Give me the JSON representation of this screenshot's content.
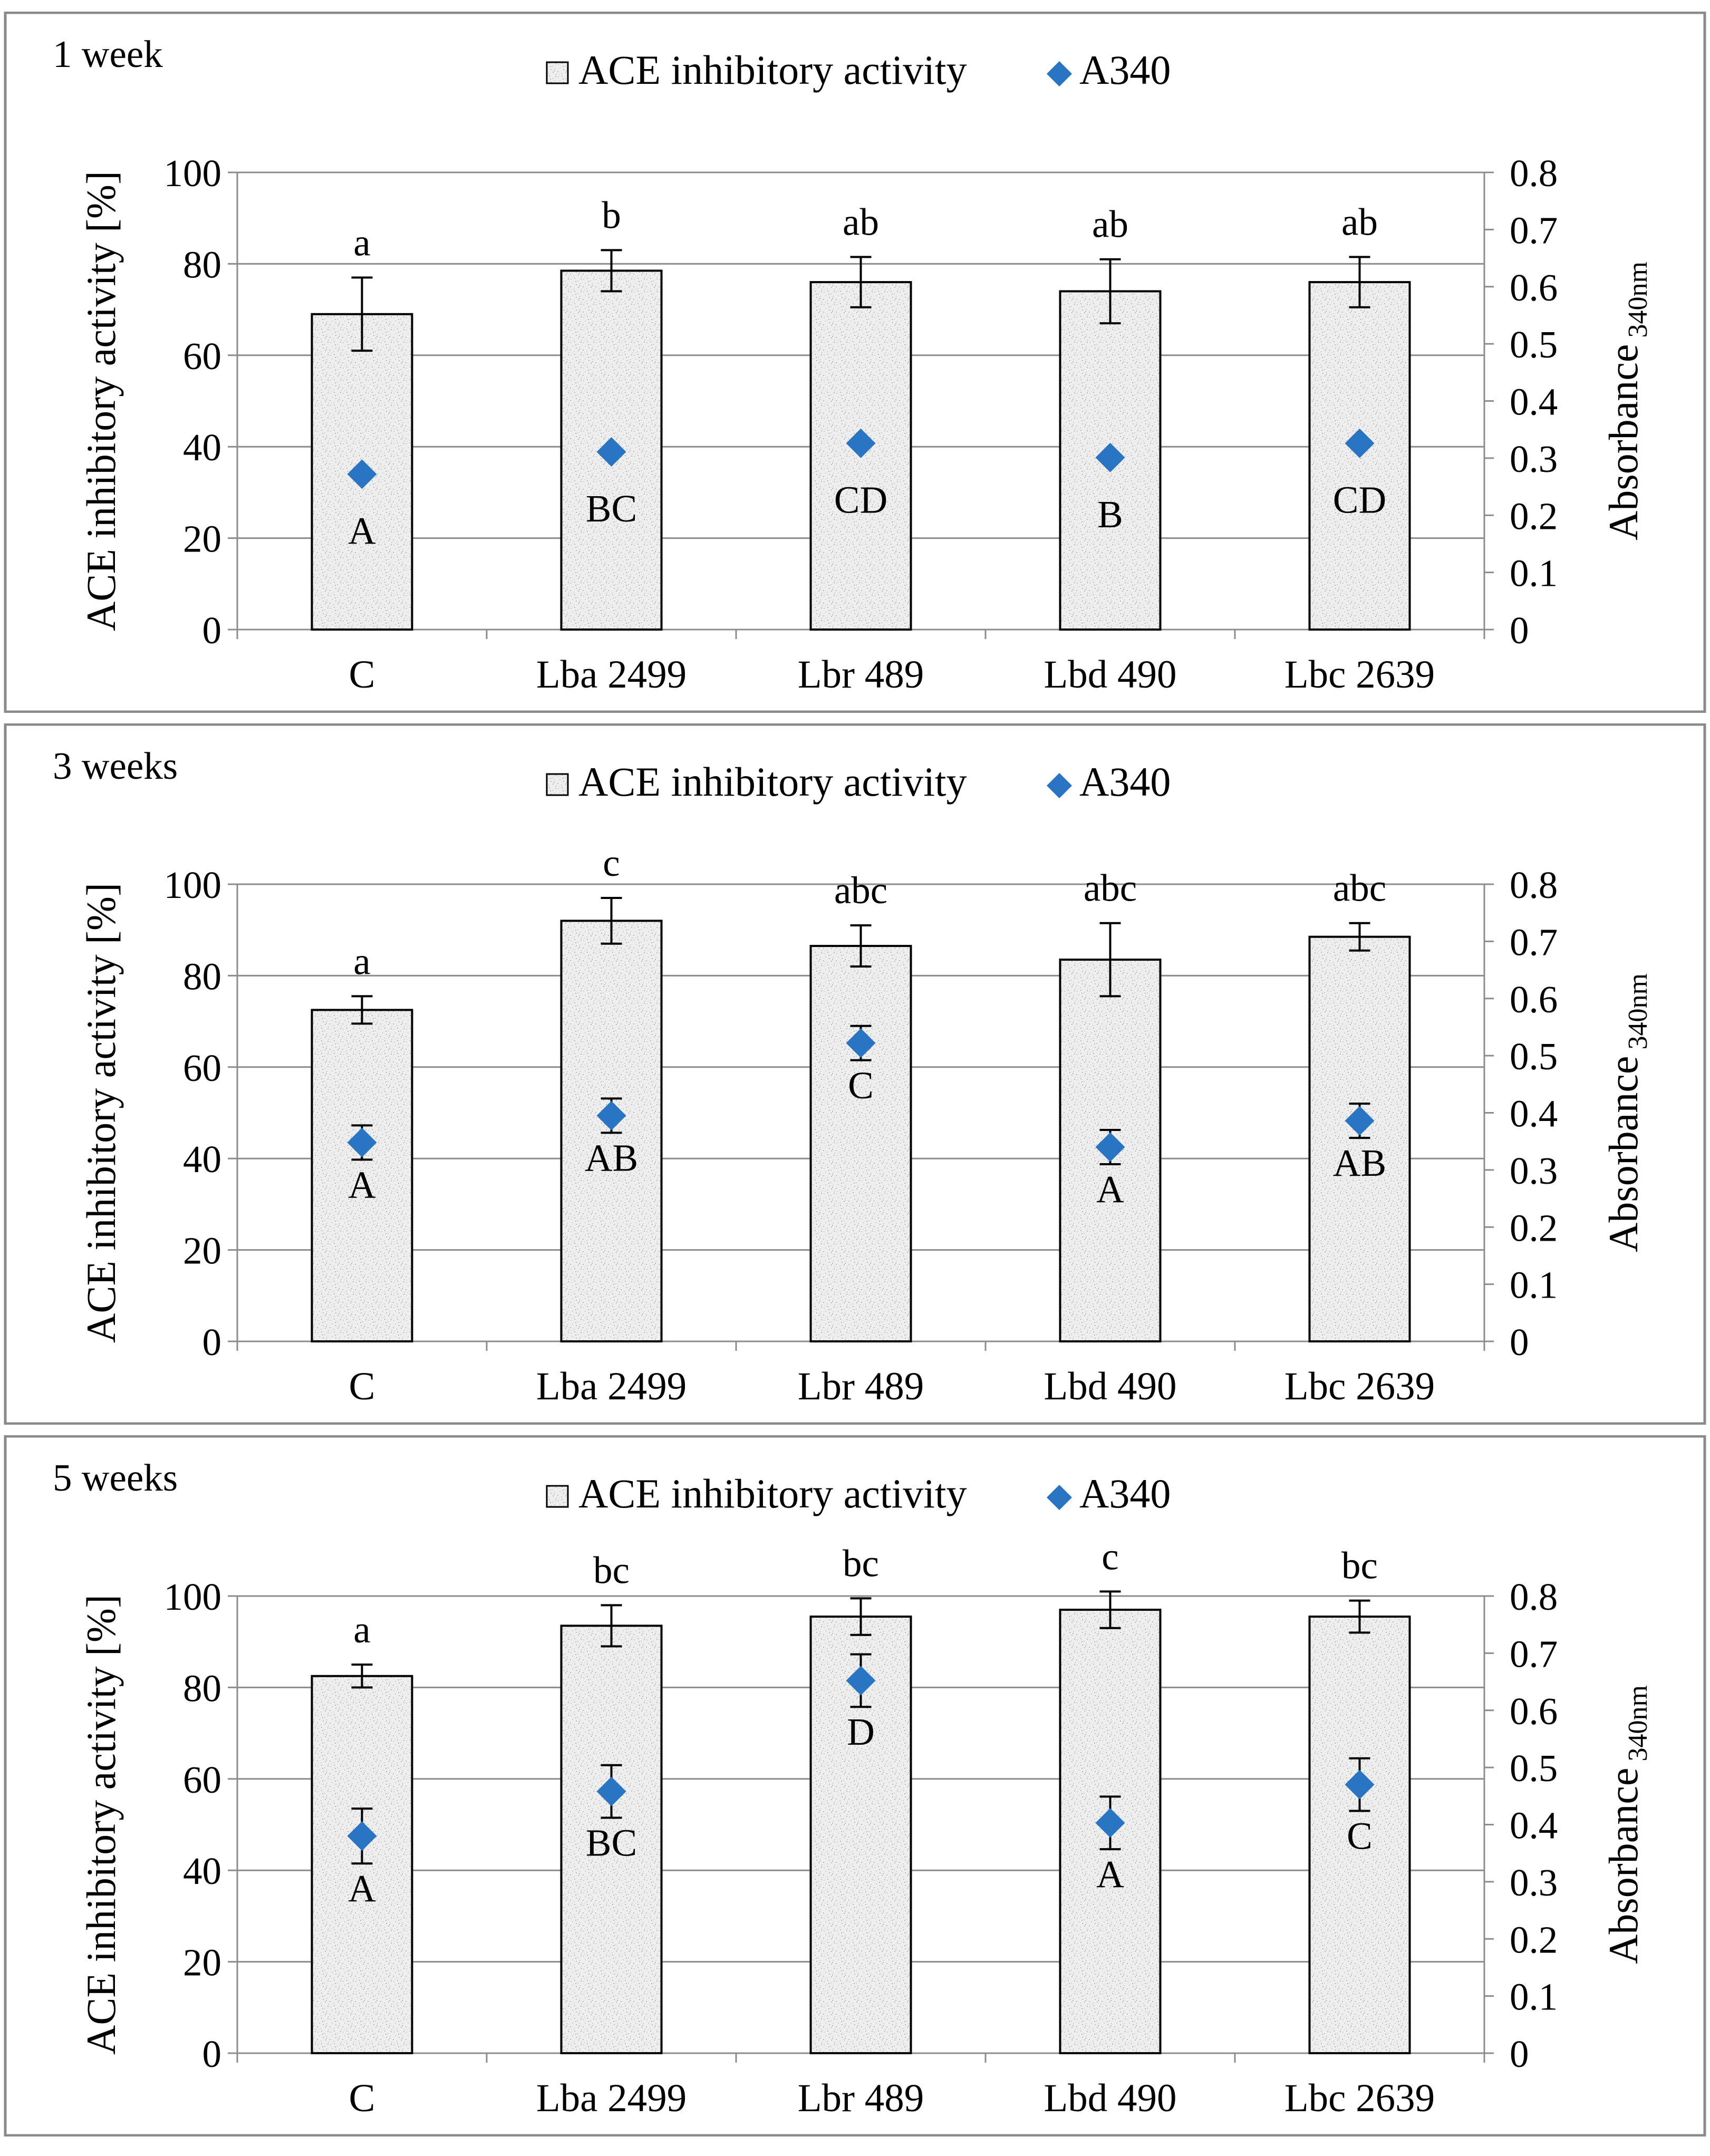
{
  "chart_data": [
    {
      "type": "bar",
      "title": "1 week",
      "categories": [
        "C",
        "Lba 2499",
        "Lbr 489",
        "Lbd 490",
        "Lbc 2639"
      ],
      "series": [
        {
          "name": "ACE inhibitory activity",
          "axis": "left",
          "values": [
            69,
            78.5,
            76,
            74,
            76
          ],
          "errors": [
            8,
            4.5,
            5.5,
            7,
            5.5
          ],
          "letters": [
            "a",
            "b",
            "ab",
            "ab",
            "ab"
          ]
        },
        {
          "name": "A340",
          "axis": "right",
          "values": [
            0.272,
            0.311,
            0.326,
            0.301,
            0.326
          ],
          "errors": [
            0,
            0,
            0,
            0,
            0
          ],
          "letters": [
            "A",
            "BC",
            "CD",
            "B",
            "CD"
          ]
        }
      ],
      "ylabel": "ACE inhibitory activity [%]",
      "ylim": [
        0,
        100
      ],
      "yticks": [
        "0",
        "20",
        "40",
        "60",
        "80",
        "100"
      ],
      "y2label_main": "Absorbance",
      "y2label_sub": "340nm",
      "y2lim": [
        0,
        0.8
      ],
      "y2ticks": [
        "0",
        "0.1",
        "0.2",
        "0.3",
        "0.4",
        "0.5",
        "0.6",
        "0.7",
        "0.8"
      ],
      "legend": "top-center",
      "grid": true
    },
    {
      "type": "bar",
      "title": "3 weeks",
      "categories": [
        "C",
        "Lba 2499",
        "Lbr 489",
        "Lbd 490",
        "Lbc 2639"
      ],
      "series": [
        {
          "name": "ACE inhibitory activity",
          "axis": "left",
          "values": [
            72.5,
            92,
            86.5,
            83.5,
            88.5
          ],
          "errors": [
            3,
            5,
            4.5,
            8,
            3
          ],
          "letters": [
            "a",
            "c",
            "abc",
            "abc",
            "abc"
          ]
        },
        {
          "name": "A340",
          "axis": "right",
          "values": [
            0.348,
            0.395,
            0.522,
            0.34,
            0.386
          ],
          "errors": [
            0.03,
            0.03,
            0.03,
            0.03,
            0.03
          ],
          "letters": [
            "A",
            "AB",
            "C",
            "A",
            "AB"
          ]
        }
      ],
      "ylabel": "ACE inhibitory activity [%]",
      "ylim": [
        0,
        100
      ],
      "yticks": [
        "0",
        "20",
        "40",
        "60",
        "80",
        "100"
      ],
      "y2label_main": "Absorbance",
      "y2label_sub": "340nm",
      "y2lim": [
        0,
        0.8
      ],
      "y2ticks": [
        "0",
        "0.1",
        "0.2",
        "0.3",
        "0.4",
        "0.5",
        "0.6",
        "0.7",
        "0.8"
      ],
      "legend": "top-center",
      "grid": true
    },
    {
      "type": "bar",
      "title": "5 weeks",
      "categories": [
        "C",
        "Lba 2499",
        "Lbr 489",
        "Lbd 490",
        "Lbc 2639"
      ],
      "series": [
        {
          "name": "ACE inhibitory activity",
          "axis": "left",
          "values": [
            82.5,
            93.5,
            95.5,
            97,
            95.5
          ],
          "errors": [
            2.5,
            4.5,
            4,
            4,
            3.5
          ],
          "letters": [
            "a",
            "bc",
            "bc",
            "c",
            "bc"
          ]
        },
        {
          "name": "A340",
          "axis": "right",
          "values": [
            0.38,
            0.458,
            0.652,
            0.403,
            0.47
          ],
          "errors": [
            0.048,
            0.046,
            0.046,
            0.046,
            0.046
          ],
          "letters": [
            "A",
            "BC",
            "D",
            "A",
            "C"
          ]
        }
      ],
      "ylabel": "ACE inhibitory activity [%]",
      "ylim": [
        0,
        100
      ],
      "yticks": [
        "0",
        "20",
        "40",
        "60",
        "80",
        "100"
      ],
      "y2label_main": "Absorbance",
      "y2label_sub": "340nm",
      "y2lim": [
        0,
        0.8
      ],
      "y2ticks": [
        "0",
        "0.1",
        "0.2",
        "0.3",
        "0.4",
        "0.5",
        "0.6",
        "0.7",
        "0.8"
      ],
      "legend": "top-center",
      "grid": true
    }
  ]
}
